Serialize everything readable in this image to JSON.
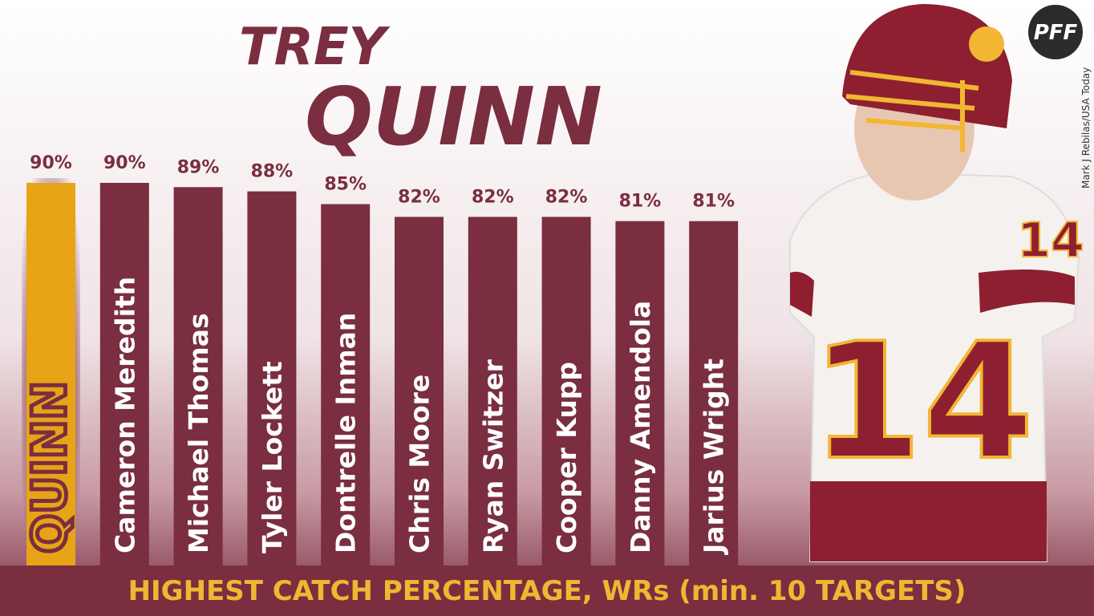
{
  "chart_data": {
    "type": "bar",
    "title_lines": [
      "TREY",
      "QUINN"
    ],
    "footer": "HIGHEST CATCH PERCENTAGE, WRs (min. 10 TARGETS)",
    "credit": "Mark J Rebilas/USA Today",
    "logo": "PFF",
    "categories": [
      "QUINN",
      "Cameron Meredith",
      "Michael Thomas",
      "Tyler Lockett",
      "Dontrelle Inman",
      "Chris Moore",
      "Ryan Switzer",
      "Cooper Kupp",
      "Danny Amendola",
      "Jarius Wright"
    ],
    "values": [
      90,
      90,
      89,
      88,
      85,
      82,
      82,
      82,
      81,
      81
    ],
    "value_labels": [
      "90%",
      "90%",
      "89%",
      "88%",
      "85%",
      "82%",
      "82%",
      "82%",
      "81%",
      "81%"
    ],
    "colors": [
      "#e8a317",
      "#7a2e40",
      "#7a2e40",
      "#7a2e40",
      "#7a2e40",
      "#7a2e40",
      "#7a2e40",
      "#7a2e40",
      "#7a2e40",
      "#7a2e40"
    ],
    "ylim": [
      0,
      100
    ]
  }
}
